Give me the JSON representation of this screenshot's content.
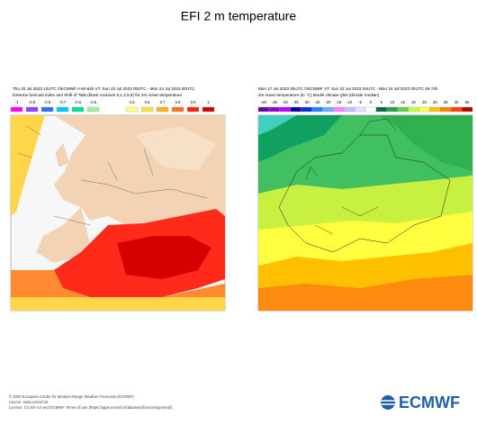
{
  "title": "EFI 2 m temperature",
  "panels": [
    {
      "header": [
        "Thu 20 Jul 2023 12UTC ©ECMWF t+60-84h  VT: Sun 23 Jul 2023 00UTC - Mon 24 Jul 2023 00UTC",
        "Extreme forecast index and Shift of Tails (black contours 0,1,2,5,8) for 2m mean temperature"
      ],
      "colorbar": [
        {
          "label": "-1",
          "color": "#ff00ff"
        },
        {
          "label": "-0.9",
          "color": "#8f3fff"
        },
        {
          "label": "-0.8",
          "color": "#2f6fff"
        },
        {
          "label": "-0.7",
          "color": "#00c8ff"
        },
        {
          "label": "-0.6",
          "color": "#00e0a0"
        },
        {
          "label": "-0.5",
          "color": "#a0f0a0"
        },
        {
          "label": "0.5",
          "color": "#ffff80"
        },
        {
          "label": "0.6",
          "color": "#ffe040"
        },
        {
          "label": "0.7",
          "color": "#ffb020"
        },
        {
          "label": "0.8",
          "color": "#ff7020"
        },
        {
          "label": "0.9",
          "color": "#ff2010"
        },
        {
          "label": "1",
          "color": "#d00000"
        }
      ]
    },
    {
      "header": [
        "Mon 17 Jul 2023 00UTC ©ECMWF VT: Sun 23 Jul 2023 00UTC - Mon 24 Jul 2023 00UTC   48-72h",
        "2m mean temperature (in °C)  Model climate Q50 (climate median)"
      ],
      "colorbar": [
        {
          "label": "-50",
          "color": "#6a00a0"
        },
        {
          "label": "-45",
          "color": "#9000d0"
        },
        {
          "label": "-40",
          "color": "#c000ff"
        },
        {
          "label": "-35",
          "color": "#0000a0"
        },
        {
          "label": "-30",
          "color": "#0030e0"
        },
        {
          "label": "-25",
          "color": "#2080ff"
        },
        {
          "label": "-20",
          "color": "#60b0ff"
        },
        {
          "label": "-15",
          "color": "#ff80ff"
        },
        {
          "label": "-10",
          "color": "#c0c0ff"
        },
        {
          "label": "-5",
          "color": "#e0e0ff"
        },
        {
          "label": "0",
          "color": "#ffffff"
        },
        {
          "label": "5",
          "color": "#007040"
        },
        {
          "label": "10",
          "color": "#20a050"
        },
        {
          "label": "15",
          "color": "#60d040"
        },
        {
          "label": "20",
          "color": "#c0ff40"
        },
        {
          "label": "25",
          "color": "#ffff40"
        },
        {
          "label": "30",
          "color": "#ffc000"
        },
        {
          "label": "35",
          "color": "#ff8000"
        },
        {
          "label": "40",
          "color": "#ff4000"
        },
        {
          "label": "50",
          "color": "#c00000"
        }
      ]
    }
  ],
  "footer": [
    "© 2020 European Centre for Medium-Range Weather Forecasts (ECMWF)",
    "Source: www.ecmwf.int",
    "Licence: CC-BY-4.0 and ECMWF Terms of Use (https://apps.ecmwf.int/datasets/licences/general/)"
  ],
  "logo": "ECMWF"
}
